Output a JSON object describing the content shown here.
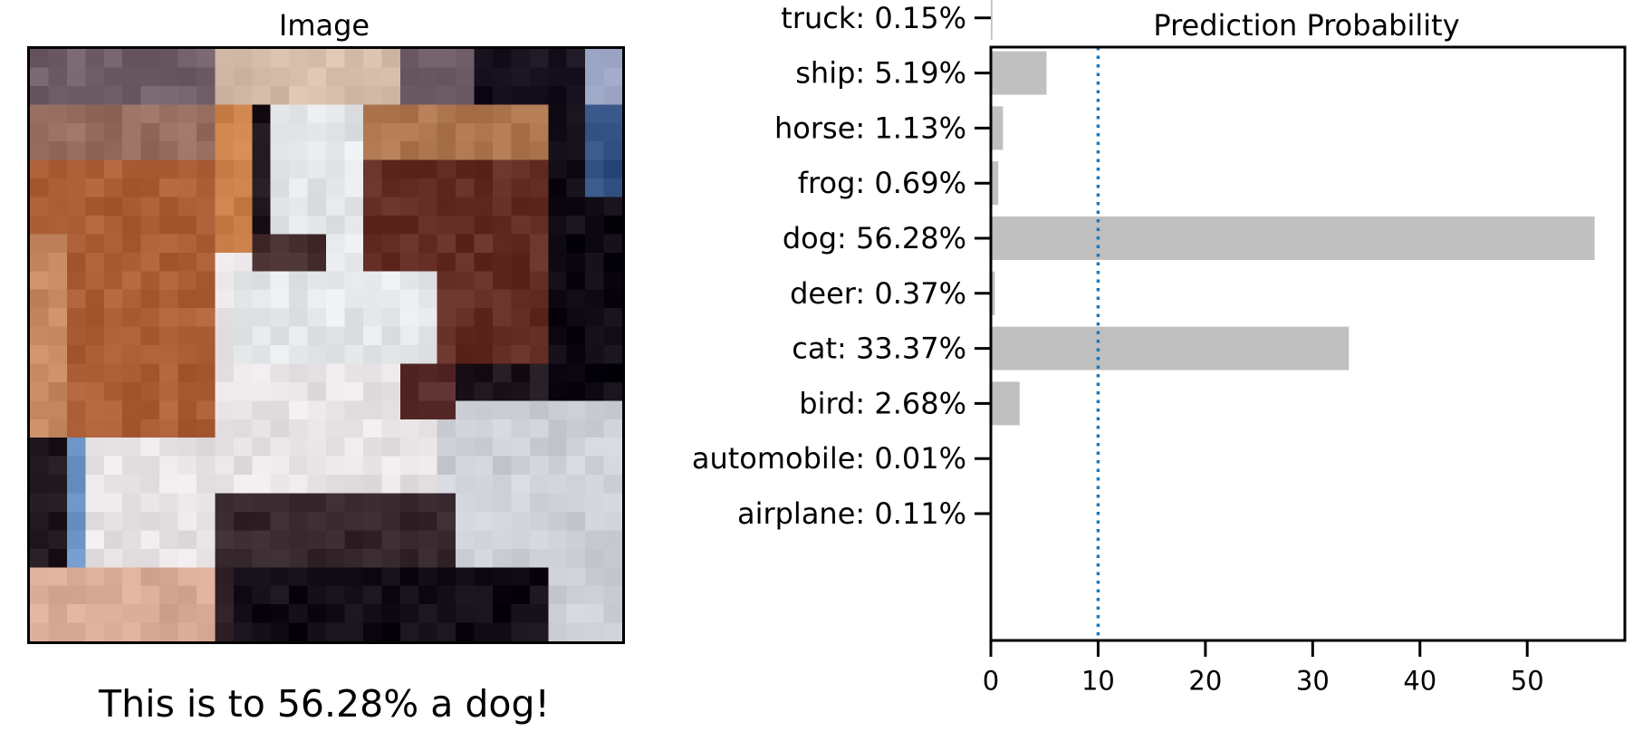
{
  "image_panel": {
    "title": "Image",
    "caption": "This is to 56.28% a dog!"
  },
  "chart_data": {
    "type": "bar",
    "orientation": "horizontal",
    "title": "Prediction Probability",
    "xlabel": "",
    "ylabel": "",
    "categories": [
      "airplane",
      "automobile",
      "bird",
      "cat",
      "deer",
      "dog",
      "frog",
      "horse",
      "ship",
      "truck"
    ],
    "category_labels": [
      "airplane:  0.11%",
      "automobile:  0.01%",
      "bird:  2.68%",
      "cat: 33.37%",
      "deer:  0.37%",
      "dog: 56.28%",
      "frog:  0.69%",
      "horse:  1.13%",
      "ship:  5.19%",
      "truck:  0.15%"
    ],
    "values": [
      0.11,
      0.01,
      2.68,
      33.37,
      0.37,
      56.28,
      0.69,
      1.13,
      5.19,
      0.15
    ],
    "xlim": [
      0,
      59.1
    ],
    "xticks": [
      0,
      10,
      20,
      30,
      40,
      50
    ],
    "reference_line": 10,
    "grid": false,
    "bar_color": "#c0c0c0",
    "reference_line_color": "#1f77b4"
  },
  "colors": {
    "bar": "#c0c0c0",
    "reference_line": "#1f77b4",
    "axes": "#000000"
  }
}
